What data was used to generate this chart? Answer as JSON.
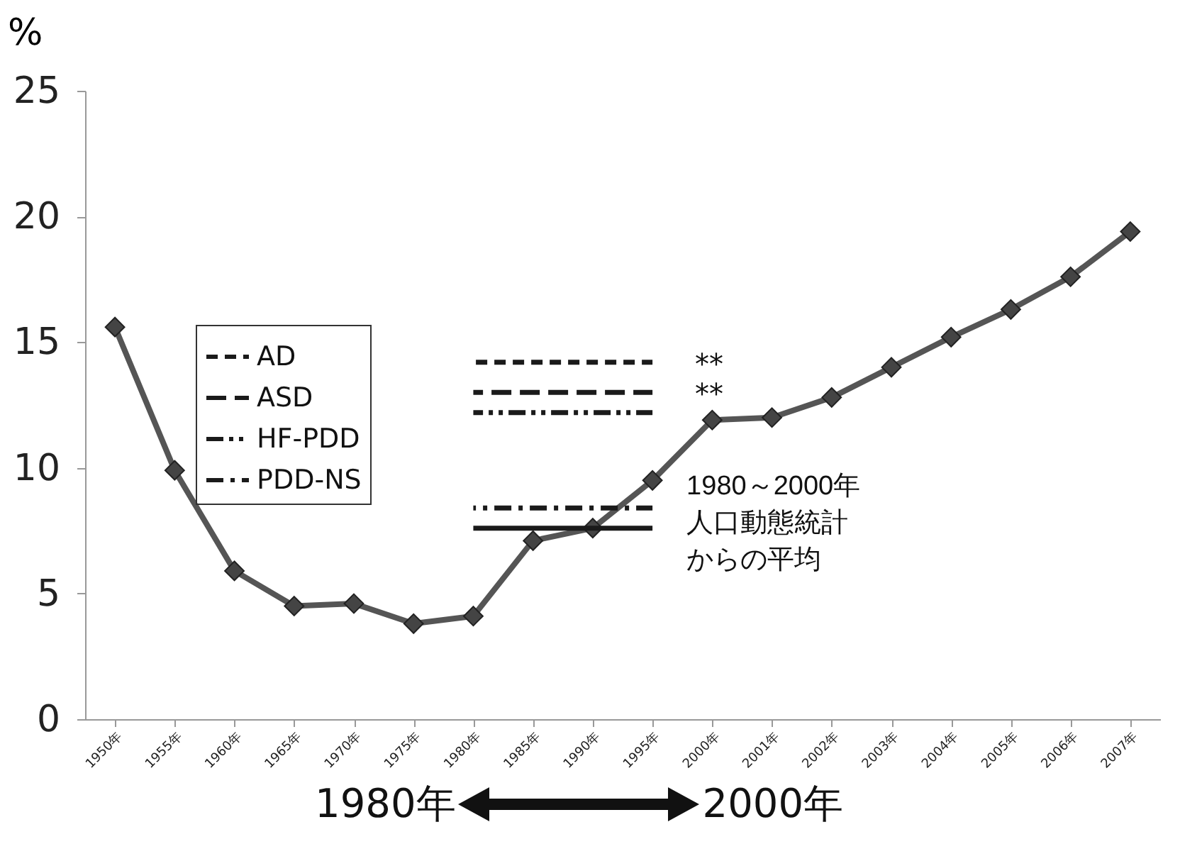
{
  "chart_data": {
    "type": "line",
    "ylabel": "%",
    "categories": [
      "1950年",
      "1955年",
      "1960年",
      "1965年",
      "1970年",
      "1975年",
      "1980年",
      "1985年",
      "1990年",
      "1995年",
      "2000年",
      "2001年",
      "2002年",
      "2003年",
      "2004年",
      "2005年",
      "2006年",
      "2007年"
    ],
    "series": [
      {
        "color": "#555555",
        "marker": "diamond",
        "line_style": "solid",
        "values": [
          15.6,
          9.9,
          5.9,
          4.5,
          4.6,
          3.8,
          4.1,
          7.1,
          7.6,
          9.5,
          11.9,
          12.0,
          12.8,
          14.0,
          15.2,
          16.3,
          17.6,
          19.4
        ]
      },
      {
        "name": "AD",
        "color": "#1a1a1a",
        "marker": "none",
        "line_style": "dashed",
        "values": [
          null,
          null,
          null,
          null,
          null,
          null,
          14.2,
          14.2,
          14.2,
          14.2,
          null,
          null,
          null,
          null,
          null,
          null,
          null,
          null
        ]
      },
      {
        "name": "ASD",
        "color": "#1a1a1a",
        "marker": "none",
        "line_style": "longdash",
        "values": [
          null,
          null,
          null,
          null,
          null,
          null,
          13.0,
          13.0,
          13.0,
          13.0,
          null,
          null,
          null,
          null,
          null,
          null,
          null,
          null
        ]
      },
      {
        "name": "HF-PDD",
        "color": "#1a1a1a",
        "marker": "none",
        "line_style": "dashdotdot",
        "values": [
          null,
          null,
          null,
          null,
          null,
          null,
          12.2,
          12.2,
          12.2,
          12.2,
          null,
          null,
          null,
          null,
          null,
          null,
          null,
          null
        ]
      },
      {
        "name": "PDD-NS",
        "color": "#1a1a1a",
        "marker": "none",
        "line_style": "dashdot",
        "values": [
          null,
          null,
          null,
          null,
          null,
          null,
          8.4,
          8.4,
          8.4,
          8.4,
          null,
          null,
          null,
          null,
          null,
          null,
          null,
          null
        ]
      },
      {
        "name": "1980～2000年人口動態統計からの平均",
        "color": "#1a1a1a",
        "marker": "none",
        "line_style": "solid",
        "values": [
          null,
          null,
          null,
          null,
          null,
          null,
          7.6,
          7.6,
          7.6,
          7.6,
          null,
          null,
          null,
          null,
          null,
          null,
          null,
          null
        ]
      }
    ],
    "ylim": [
      0,
      25
    ],
    "yticks": [
      0,
      5,
      10,
      15,
      20,
      25
    ],
    "grid": false,
    "legend": "left",
    "annotations": [
      {
        "text": "**",
        "x": "1995年",
        "y": 14.2
      },
      {
        "text": "**",
        "x": "1995年",
        "y": 13.0
      },
      "1980年",
      "2000年"
    ]
  }
}
